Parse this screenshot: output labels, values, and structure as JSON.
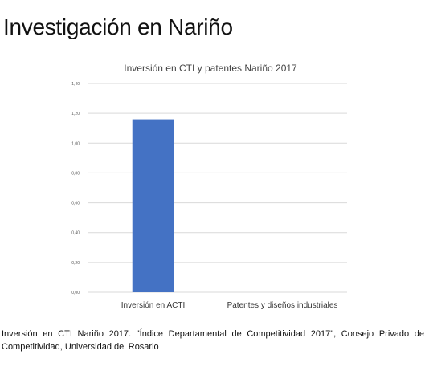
{
  "slide": {
    "title": "Investigación en Nariño",
    "caption": "Inversión en CTI Nariño 2017. \"Índice Departamental de Competitividad 2017\", Consejo Privado de Competitividad, Universidad del Rosario"
  },
  "chart_data": {
    "type": "bar",
    "title": "Inversión en CTI y patentes Nariño 2017",
    "categories": [
      "Inversión en ACTI",
      "Patentes y diseños industriales"
    ],
    "values": [
      1.16,
      0
    ],
    "ylim": [
      0,
      1.4
    ],
    "yticks": [
      0,
      0.2,
      0.4,
      0.6,
      0.8,
      1.0,
      1.2,
      1.4
    ],
    "ytick_labels": [
      "0,00",
      "0,20",
      "0,40",
      "0,60",
      "0,80",
      "1,00",
      "1,20",
      "1,40"
    ],
    "xlabel": "",
    "ylabel": "",
    "grid": true,
    "legend": "none",
    "bar_color": "#4472c4",
    "grid_color": "#d9d9d9"
  }
}
